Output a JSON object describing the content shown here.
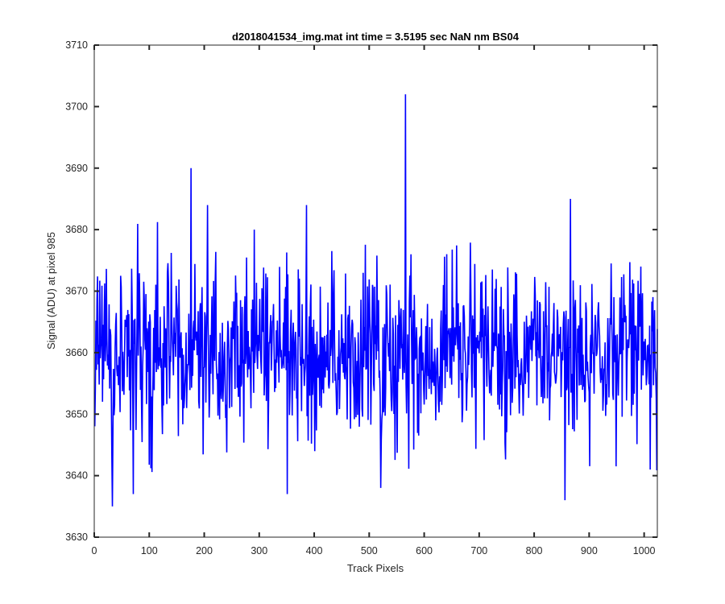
{
  "chart_data": {
    "type": "line",
    "title": "d2018041534_img.mat int time = 3.5195 sec  NaN nm BS04",
    "xlabel": "Track Pixels",
    "ylabel": "Signal (ADU) at pixel 985",
    "xlim": [
      0,
      1024
    ],
    "ylim": [
      3630,
      3710
    ],
    "xticks": [
      0,
      100,
      200,
      300,
      400,
      500,
      600,
      700,
      800,
      900,
      1000
    ],
    "yticks": [
      3630,
      3640,
      3650,
      3660,
      3670,
      3680,
      3690,
      3700,
      3710
    ],
    "grid": false,
    "series_color": "#0000ff",
    "series": [
      {
        "noise_mean": 3660,
        "noise_min": 3635,
        "noise_max": 3702,
        "notable_points": [
          {
            "x": 32,
            "y": 3635
          },
          {
            "x": 70,
            "y": 3637
          },
          {
            "x": 175,
            "y": 3690
          },
          {
            "x": 205,
            "y": 3684
          },
          {
            "x": 290,
            "y": 3680
          },
          {
            "x": 350,
            "y": 3637
          },
          {
            "x": 385,
            "y": 3684
          },
          {
            "x": 520,
            "y": 3638
          },
          {
            "x": 565,
            "y": 3702
          },
          {
            "x": 640,
            "y": 3676
          },
          {
            "x": 855,
            "y": 3636
          },
          {
            "x": 865,
            "y": 3685
          },
          {
            "x": 1010,
            "y": 3641
          }
        ]
      }
    ]
  }
}
